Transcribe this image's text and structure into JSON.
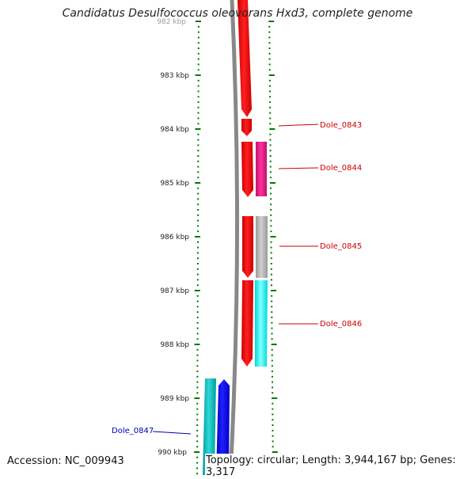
{
  "title": "Candidatus Desulfococcus oleovorans Hxd3, complete genome",
  "accession_text": "Accession: NC_009943",
  "summary_text": "Topology: circular; Length: 3,944,167 bp; Genes: 3,317",
  "tick_labels": [
    "982 kbp",
    "983 kbp",
    "984 kbp",
    "985 kbp",
    "986 kbp",
    "987 kbp",
    "988 kbp",
    "989 kbp",
    "990 kbp"
  ],
  "gene_labels": [
    {
      "text": "Dole_0843",
      "color": "#cc0000"
    },
    {
      "text": "Dole_0844",
      "color": "#cc0000"
    },
    {
      "text": "Dole_0845",
      "color": "#cc0000"
    },
    {
      "text": "Dole_0846",
      "color": "#cc0000"
    },
    {
      "text": "Dole_0847",
      "color": "#0000aa"
    }
  ],
  "colors": {
    "backbone": "#888888",
    "tick": "#007700",
    "red_gene": "#ff0000",
    "magenta_gene": "#e8208c",
    "grey_gene": "#b4b4b4",
    "cyan_gene": "#00ffff",
    "teal_gene": "#00c0c0",
    "blue_gene": "#0000ff"
  }
}
